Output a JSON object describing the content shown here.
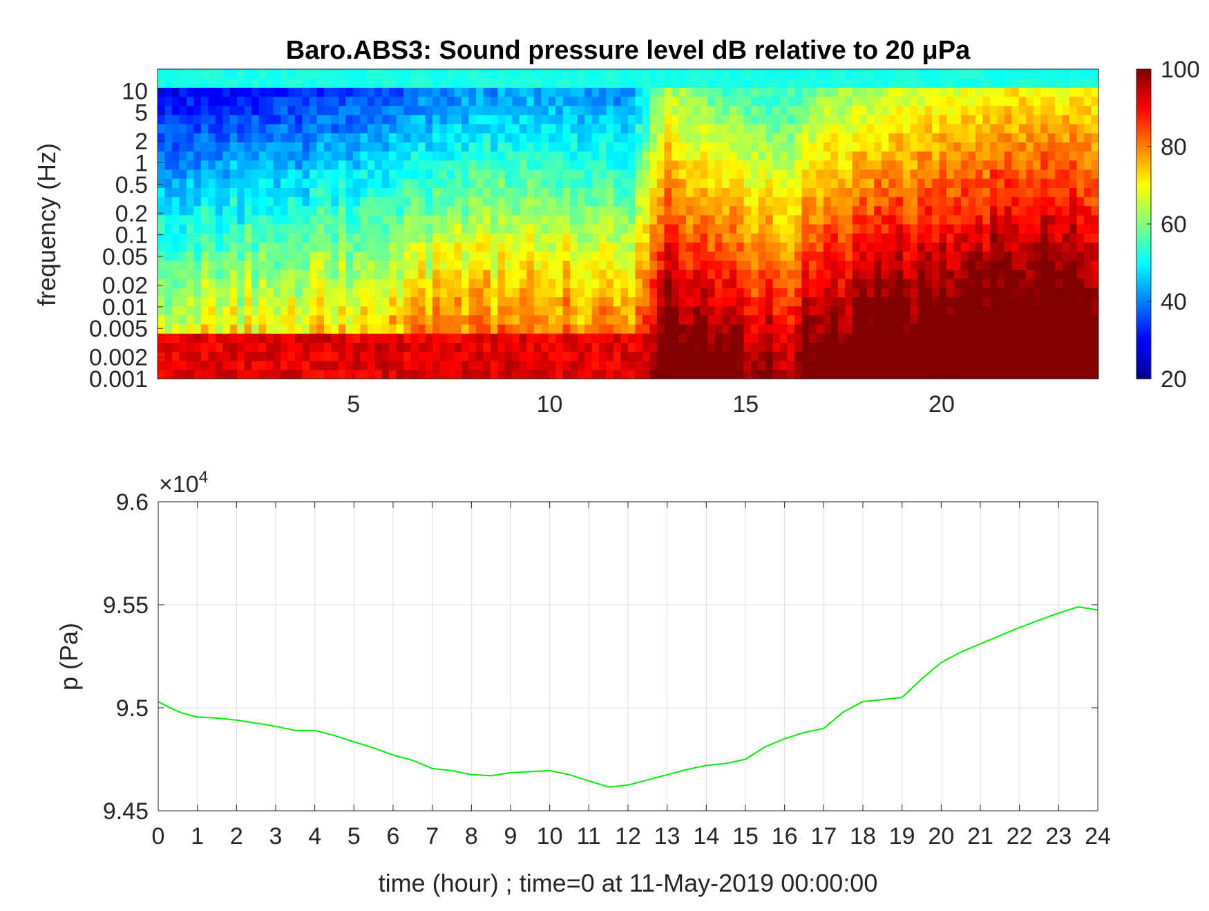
{
  "chart_data": [
    {
      "type": "heatmap",
      "title": "Baro.ABS3: Sound pressure level dB relative to 20 μPa",
      "ylabel": "frequency (Hz)",
      "yscale": "log",
      "ylim": [
        0.001,
        20
      ],
      "yticks": [
        "10",
        "5",
        "2",
        "1",
        "0.5",
        "0.2",
        "0.1",
        "0.05",
        "0.02",
        "0.01",
        "0.005",
        "0.002",
        "0.001"
      ],
      "xlim": [
        0,
        24
      ],
      "xticks": [
        "5",
        "10",
        "15",
        "20"
      ],
      "colorbar": {
        "colormap": "jet",
        "clim": [
          20,
          100
        ],
        "ticks": [
          "100",
          "80",
          "60",
          "40",
          "20"
        ]
      },
      "summary_level_profile": [
        {
          "hour": 0,
          "level_db": 50
        },
        {
          "hour": 2,
          "level_db": 52
        },
        {
          "hour": 4,
          "level_db": 54
        },
        {
          "hour": 6,
          "level_db": 58
        },
        {
          "hour": 8,
          "level_db": 62
        },
        {
          "hour": 10,
          "level_db": 64
        },
        {
          "hour": 12,
          "level_db": 60
        },
        {
          "hour": 13,
          "level_db": 85
        },
        {
          "hour": 14,
          "level_db": 78
        },
        {
          "hour": 15,
          "level_db": 76
        },
        {
          "hour": 16,
          "level_db": 74
        },
        {
          "hour": 17,
          "level_db": 82
        },
        {
          "hour": 18,
          "level_db": 84
        },
        {
          "hour": 20,
          "level_db": 88
        },
        {
          "hour": 22,
          "level_db": 92
        },
        {
          "hour": 24,
          "level_db": 90
        }
      ]
    },
    {
      "type": "line",
      "ylabel": "p (Pa)",
      "xlabel": "time (hour) ; time=0 at 11-May-2019 00:00:00",
      "exponent_label": "×10",
      "exponent_power": "4",
      "xlim": [
        0,
        24
      ],
      "ylim": [
        94500,
        96000
      ],
      "xticks": [
        "0",
        "1",
        "2",
        "3",
        "4",
        "5",
        "6",
        "7",
        "8",
        "9",
        "10",
        "11",
        "12",
        "13",
        "14",
        "15",
        "16",
        "17",
        "18",
        "19",
        "20",
        "21",
        "22",
        "23",
        "24"
      ],
      "yticks": [
        "9.6",
        "9.55",
        "9.5",
        "9.45"
      ],
      "grid": true,
      "line_color": "#00ee00",
      "series": [
        {
          "x": [
            0,
            0.3,
            0.6,
            1,
            1.5,
            2,
            2.5,
            3,
            3.5,
            4,
            4.5,
            5,
            5.5,
            6,
            6.5,
            7,
            7.5,
            8,
            8.5,
            9,
            9.5,
            10,
            10.5,
            11,
            11.5,
            12,
            12.5,
            13,
            13.5,
            14,
            14.5,
            15,
            15.5,
            16,
            16.5,
            17,
            17.5,
            18,
            18.5,
            19,
            19.5,
            20,
            20.5,
            21,
            21.5,
            22,
            22.5,
            23,
            23.5,
            24
          ],
          "y": [
            95030,
            95000,
            94975,
            94955,
            94950,
            94940,
            94925,
            94910,
            94890,
            94890,
            94865,
            94835,
            94805,
            94770,
            94745,
            94705,
            94695,
            94675,
            94670,
            94685,
            94690,
            94695,
            94675,
            94645,
            94615,
            94625,
            94650,
            94675,
            94700,
            94720,
            94730,
            94750,
            94810,
            94850,
            94880,
            94900,
            94980,
            95030,
            95040,
            95050,
            95140,
            95220,
            95270,
            95310,
            95350,
            95390,
            95425,
            95460,
            95490,
            95475
          ]
        }
      ]
    }
  ]
}
